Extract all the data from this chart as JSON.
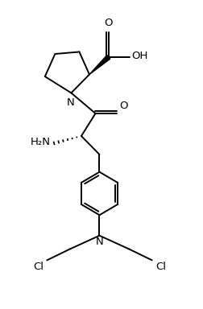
{
  "bg_color": "#ffffff",
  "line_color": "#000000",
  "line_width": 1.4,
  "font_size": 8.5,
  "figsize": [
    2.52,
    3.84
  ],
  "dpi": 100,
  "xlim": [
    0,
    10
  ],
  "ylim": [
    0,
    15
  ]
}
